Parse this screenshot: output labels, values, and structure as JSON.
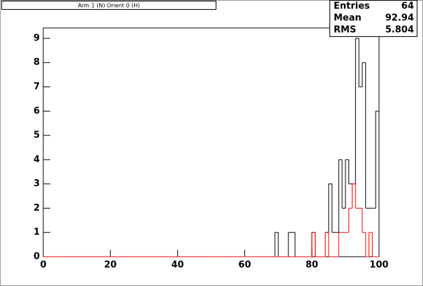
{
  "chart_data": {
    "type": "histogram",
    "title": "Arm 1 (N) Orient 0 (H)",
    "bins": [
      0,
      1,
      2,
      3,
      4,
      5,
      6,
      7,
      8,
      9,
      10,
      11,
      12,
      13,
      14,
      15,
      16,
      17,
      18,
      19,
      20,
      21,
      22,
      23,
      24,
      25,
      26,
      27,
      28,
      29,
      30,
      31,
      32,
      33,
      34,
      35,
      36,
      37,
      38,
      39,
      40,
      41,
      42,
      43,
      44,
      45,
      46,
      47,
      48,
      49,
      50,
      51,
      52,
      53,
      54,
      55,
      56,
      57,
      58,
      59,
      60,
      61,
      62,
      63,
      64,
      65,
      66,
      67,
      68,
      69,
      70,
      71,
      72,
      73,
      74,
      75,
      76,
      77,
      78,
      79,
      80,
      81,
      82,
      83,
      84,
      85,
      86,
      87,
      88,
      89,
      90,
      91,
      92,
      93,
      94,
      95,
      96,
      97,
      98,
      99,
      100
    ],
    "series": [
      {
        "color": "#000000",
        "values": [
          0,
          0,
          0,
          0,
          0,
          0,
          0,
          0,
          0,
          0,
          0,
          0,
          0,
          0,
          0,
          0,
          0,
          0,
          0,
          0,
          0,
          0,
          0,
          0,
          0,
          0,
          0,
          0,
          0,
          0,
          0,
          0,
          0,
          0,
          0,
          0,
          0,
          0,
          0,
          0,
          0,
          0,
          0,
          0,
          0,
          0,
          0,
          0,
          0,
          0,
          0,
          0,
          0,
          0,
          0,
          0,
          0,
          0,
          0,
          0,
          0,
          0,
          0,
          0,
          0,
          0,
          0,
          0,
          0,
          1,
          0,
          0,
          0,
          1,
          1,
          0,
          0,
          0,
          0,
          0,
          1,
          0,
          0,
          0,
          1,
          3,
          1,
          1,
          4,
          2,
          4,
          3,
          3,
          9,
          7,
          8,
          2,
          2,
          2,
          6
        ]
      },
      {
        "color": "#ff0000",
        "values": [
          0,
          0,
          0,
          0,
          0,
          0,
          0,
          0,
          0,
          0,
          0,
          0,
          0,
          0,
          0,
          0,
          0,
          0,
          0,
          0,
          0,
          0,
          0,
          0,
          0,
          0,
          0,
          0,
          0,
          0,
          0,
          0,
          0,
          0,
          0,
          0,
          0,
          0,
          0,
          0,
          0,
          0,
          0,
          0,
          0,
          0,
          0,
          0,
          0,
          0,
          0,
          0,
          0,
          0,
          0,
          0,
          0,
          0,
          0,
          0,
          0,
          0,
          0,
          0,
          0,
          0,
          0,
          0,
          0,
          0,
          0,
          0,
          0,
          0,
          0,
          0,
          0,
          0,
          0,
          0,
          1,
          0,
          0,
          0,
          1,
          0,
          0,
          0,
          1,
          1,
          1,
          2,
          3,
          2,
          2,
          1,
          0,
          1,
          0,
          0
        ]
      }
    ],
    "xlim": [
      0,
      100
    ],
    "xticks": [
      0,
      20,
      40,
      60,
      80,
      100
    ],
    "ylim": [
      0,
      9.43
    ],
    "yticks": [
      0,
      1,
      2,
      3,
      4,
      5,
      6,
      7,
      8,
      9
    ],
    "stats": [
      {
        "label": "Entries",
        "value": 64
      },
      {
        "label": "Mean",
        "value": 92.94
      },
      {
        "label": "RMS",
        "value": 5.804
      }
    ]
  }
}
